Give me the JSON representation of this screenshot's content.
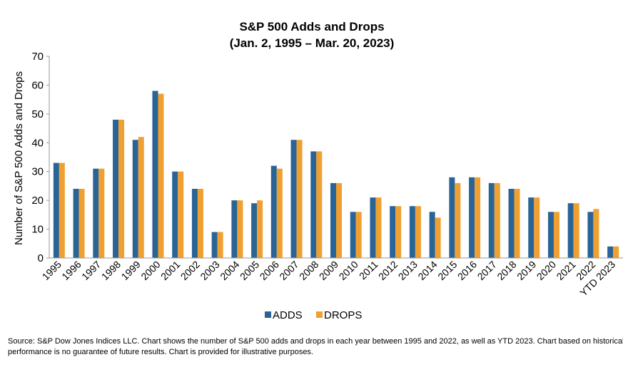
{
  "chart_data": {
    "type": "bar",
    "title": "S&P 500 Adds and Drops",
    "subtitle": "(Jan. 2, 1995 – Mar. 20, 2023)",
    "xlabel": "",
    "ylabel": "Number of S&P 500 Adds and Drops",
    "ylim": [
      0,
      70
    ],
    "yticks": [
      0,
      10,
      20,
      30,
      40,
      50,
      60,
      70
    ],
    "grid": false,
    "legend_position": "bottom",
    "categories": [
      "1995",
      "1996",
      "1997",
      "1998",
      "1999",
      "2000",
      "2001",
      "2002",
      "2003",
      "2004",
      "2005",
      "2006",
      "2007",
      "2008",
      "2009",
      "2010",
      "2011",
      "2012",
      "2013",
      "2014",
      "2015",
      "2016",
      "2017",
      "2018",
      "2019",
      "2020",
      "2021",
      "2022",
      "YTD 2023"
    ],
    "series": [
      {
        "name": "ADDS",
        "color": "#2a6496",
        "values": [
          33,
          24,
          31,
          48,
          41,
          58,
          30,
          24,
          9,
          20,
          19,
          32,
          41,
          37,
          26,
          16,
          21,
          18,
          18,
          16,
          28,
          28,
          26,
          24,
          21,
          16,
          19,
          16,
          4
        ]
      },
      {
        "name": "DROPS",
        "color": "#f0a030",
        "values": [
          33,
          24,
          31,
          48,
          42,
          57,
          30,
          24,
          9,
          20,
          20,
          31,
          41,
          37,
          26,
          16,
          21,
          18,
          18,
          14,
          26,
          28,
          26,
          24,
          21,
          16,
          19,
          17,
          4
        ]
      }
    ]
  },
  "source": {
    "line1": "Source: S&P Dow Jones Indices LLC. Chart shows the number of S&P 500 adds and drops in each year between 1995 and 2022, as well as YTD 2023.  Chart based on historical data. Past",
    "line2": "performance is no guarantee of future results. Chart is provided for illustrative purposes."
  }
}
